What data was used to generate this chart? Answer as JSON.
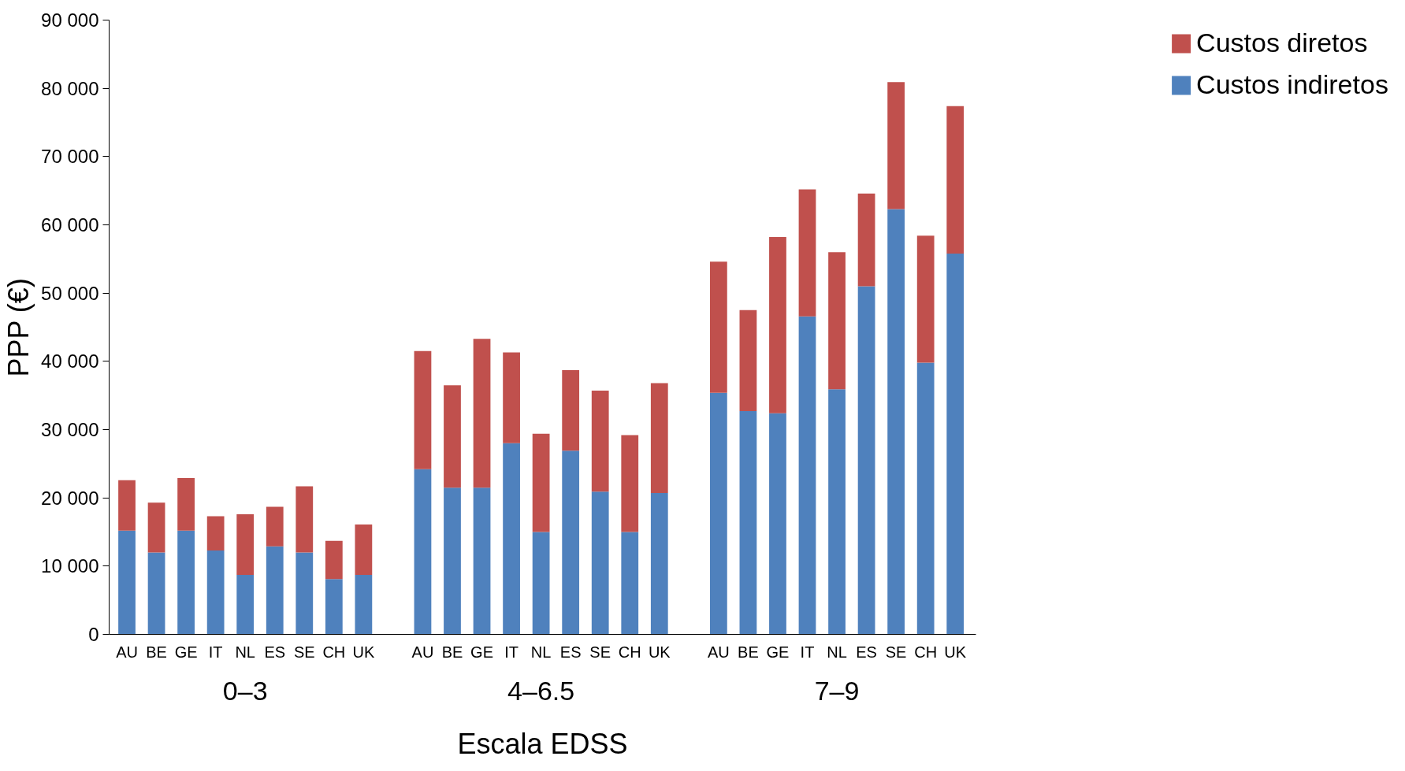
{
  "chart_data": {
    "type": "bar",
    "stacked": true,
    "xlabel": "Escala EDSS",
    "ylabel": "PPP (€)",
    "categories": [
      "AU",
      "BE",
      "GE",
      "IT",
      "NL",
      "ES",
      "SE",
      "CH",
      "UK",
      null,
      "AU",
      "BE",
      "GE",
      "IT",
      "NL",
      "ES",
      "SE",
      "CH",
      "UK",
      null,
      "AU",
      "BE",
      "GE",
      "IT",
      "NL",
      "ES",
      "SE",
      "CH",
      "UK"
    ],
    "series": [
      {
        "name": "Custos indiretos",
        "color": "#4f81bd",
        "values": [
          15200,
          12000,
          15200,
          12300,
          8700,
          12900,
          12000,
          8100,
          8700,
          null,
          24200,
          21500,
          21500,
          28000,
          15000,
          26900,
          20900,
          15000,
          20700,
          null,
          35400,
          32700,
          32400,
          46600,
          35900,
          51000,
          62300,
          39800,
          55800
        ]
      },
      {
        "name": "Custos diretos",
        "color": "#c0504d",
        "values": [
          7400,
          7300,
          7700,
          5000,
          8900,
          5800,
          9700,
          5600,
          7400,
          null,
          17300,
          15000,
          21800,
          13300,
          14400,
          11800,
          14800,
          14200,
          16100,
          null,
          19200,
          14800,
          25800,
          18600,
          20100,
          13600,
          18600,
          18600,
          21600
        ]
      }
    ],
    "annotations": [
      "0–3",
      "4–6.5",
      "7–9"
    ],
    "ylim": [
      0,
      90000
    ],
    "yticks": [
      0,
      {
        "value": 10000,
        "label": "10 000"
      },
      {
        "value": 20000,
        "label": "20 000"
      },
      {
        "value": 30000,
        "label": "30 000"
      },
      {
        "value": 40000,
        "label": "40 000"
      },
      {
        "value": 50000,
        "label": "50 000"
      },
      {
        "value": 60000,
        "label": "60 000"
      },
      {
        "value": 70000,
        "label": "70 000"
      },
      {
        "value": 80000,
        "label": "80 000"
      },
      {
        "value": 90000,
        "label": "90 000"
      }
    ],
    "grid": false,
    "legend": "top right"
  }
}
